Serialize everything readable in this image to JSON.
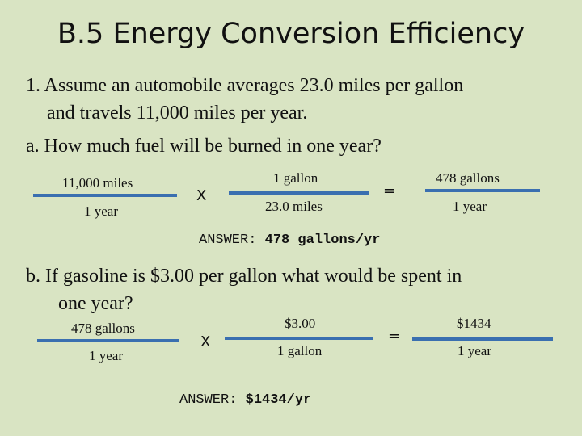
{
  "title": "B.5 Energy Conversion Efficiency",
  "problem": {
    "line1": "1. Assume an automobile averages 23.0 miles per gallon",
    "line2": "and travels 11,000 miles per year.",
    "part_a": "a.  How much fuel will be burned in one year?"
  },
  "calc_a": {
    "frac1_num": "11,000 miles",
    "frac1_den": "1 year",
    "times": "X",
    "frac2_num": "1 gallon",
    "frac2_den": "23.0 miles",
    "equals": "=",
    "result_num": "478 gallons",
    "result_den": "1 year",
    "answer_label": "ANSWER:",
    "answer_value": "478 gallons/yr"
  },
  "part_b": {
    "line1": "b.  If gasoline is $3.00 per gallon what would be spent in",
    "line2": "one year?"
  },
  "calc_b": {
    "frac1_num": "478 gallons",
    "frac1_den": "1 year",
    "times": "X",
    "frac2_num": "$3.00",
    "frac2_den": "1 gallon",
    "equals": "=",
    "result_num": "$1434",
    "result_den": "1 year",
    "answer_label": "ANSWER:",
    "answer_value": "$1434/yr"
  },
  "colors": {
    "background": "#d9e4c3",
    "fraction_bar": "#3a6fb0",
    "text": "#111111"
  }
}
